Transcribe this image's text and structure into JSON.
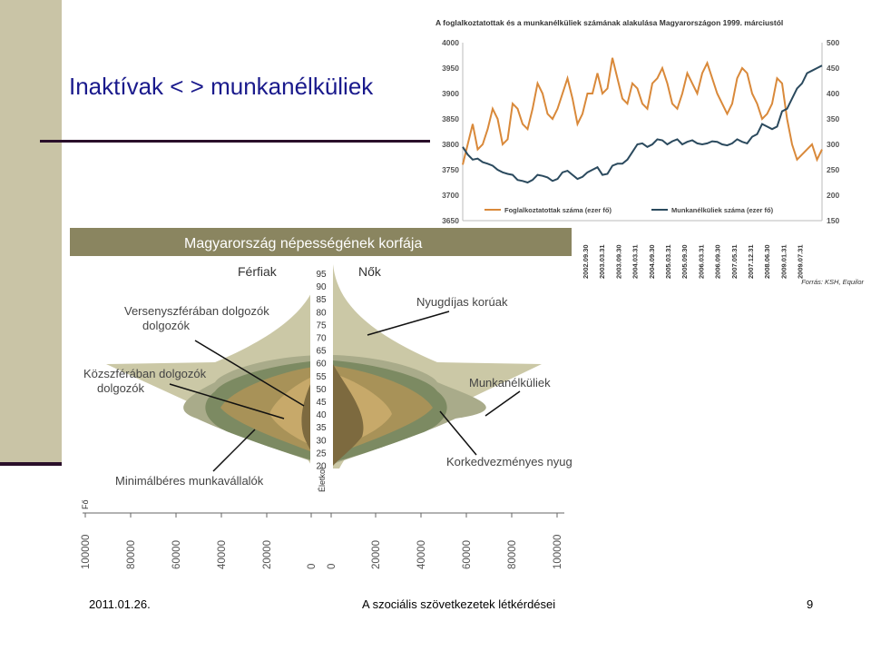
{
  "slide": {
    "title": "Inaktívak < > munkanélküliek",
    "date": "2011.01.26.",
    "footer": "A szociális szövetkezetek létkérdései",
    "page": "9"
  },
  "colors": {
    "employed": "#d9893a",
    "unemployed": "#2b4a5e",
    "pyramid_header": "#8a8560",
    "retired": "#cbc8a6",
    "unemployed_band": "#a9ab8a",
    "public_sector": "#7c8a62",
    "private_sector": "#a89258",
    "min_wage": "#c7a96a",
    "disability": "#7d6a3f"
  },
  "chart_data": [
    {
      "type": "line",
      "title": "A foglalkoztatottak és a munkanélküliek számának alakulása Magyarországon 1999. márciustól",
      "source": "Forrás: KSH, Equilor",
      "x_labels": [
        "2002.09.30",
        "2003.03.31",
        "2003.09.30",
        "2004.03.31",
        "2004.09.30",
        "2005.03.31",
        "2005.09.30",
        "2006.03.31",
        "2006.09.30",
        "2007.05.31",
        "2007.12.31",
        "2008.06.30",
        "2009.01.31",
        "2009.07.31"
      ],
      "y_left": {
        "ticks": [
          "4000",
          "3950",
          "3900",
          "3850",
          "3800",
          "3750",
          "3700",
          "3650"
        ],
        "range": [
          3650,
          4000
        ]
      },
      "y_right": {
        "ticks": [
          "500",
          "450",
          "400",
          "350",
          "300",
          "250",
          "200",
          "150"
        ],
        "range": [
          150,
          500
        ]
      },
      "series": [
        {
          "name": "Foglalkoztatottak száma (ezer fő)",
          "axis": "left",
          "values": [
            3760,
            3800,
            3840,
            3790,
            3800,
            3830,
            3870,
            3850,
            3800,
            3810,
            3880,
            3870,
            3840,
            3830,
            3870,
            3920,
            3900,
            3860,
            3850,
            3870,
            3900,
            3930,
            3890,
            3840,
            3860,
            3900,
            3900,
            3940,
            3900,
            3910,
            3970,
            3930,
            3890,
            3880,
            3920,
            3910,
            3880,
            3870,
            3920,
            3930,
            3950,
            3920,
            3880,
            3870,
            3900,
            3940,
            3920,
            3900,
            3940,
            3960,
            3930,
            3900,
            3880,
            3860,
            3880,
            3930,
            3950,
            3940,
            3900,
            3880,
            3850,
            3860,
            3880,
            3930,
            3920,
            3850,
            3800,
            3770,
            3780,
            3790,
            3800,
            3770,
            3790
          ]
        },
        {
          "name": "Munkanélküliek száma (ezer fő)",
          "axis": "right",
          "values": [
            295,
            280,
            270,
            272,
            265,
            262,
            258,
            250,
            245,
            242,
            240,
            230,
            228,
            225,
            230,
            240,
            238,
            235,
            228,
            232,
            245,
            248,
            240,
            232,
            236,
            245,
            250,
            255,
            240,
            242,
            258,
            262,
            262,
            270,
            285,
            300,
            302,
            295,
            300,
            310,
            308,
            300,
            306,
            310,
            300,
            305,
            308,
            302,
            300,
            302,
            306,
            305,
            300,
            298,
            302,
            310,
            305,
            302,
            315,
            320,
            340,
            335,
            330,
            335,
            365,
            370,
            390,
            410,
            420,
            440,
            445,
            450,
            455
          ]
        }
      ]
    },
    {
      "type": "area",
      "title": "Magyarország népességének korfája",
      "left_label": "Férfiak",
      "right_label": "Nők",
      "age_axis_label": "Életkor",
      "count_axis_label": "Fő",
      "age_ticks": [
        "95",
        "90",
        "85",
        "80",
        "75",
        "70",
        "65",
        "60",
        "55",
        "50",
        "45",
        "40",
        "35",
        "30",
        "25",
        "20"
      ],
      "x_ticks_left": [
        "100000",
        "80000",
        "60000",
        "40000",
        "20000",
        "0"
      ],
      "x_ticks_right": [
        "0",
        "20000",
        "40000",
        "60000",
        "80000",
        "100000"
      ],
      "annotations": [
        "Versenyszférában dolgozók",
        "Közszférában dolgozók",
        "Minimálbéres munkavállalók",
        "Nyugdíjas korúak",
        "Munkanélküliek",
        "Korkedvezményes nyugdíjasok, rokkantnyugdíjasok"
      ]
    }
  ]
}
